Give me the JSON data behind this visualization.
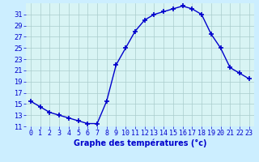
{
  "hours": [
    0,
    1,
    2,
    3,
    4,
    5,
    6,
    7,
    8,
    9,
    10,
    11,
    12,
    13,
    14,
    15,
    16,
    17,
    18,
    19,
    20,
    21,
    22,
    23
  ],
  "temps": [
    15.5,
    14.5,
    13.5,
    13.0,
    12.5,
    12.0,
    11.5,
    11.5,
    15.5,
    22.0,
    25.0,
    28.0,
    30.0,
    31.0,
    31.5,
    32.0,
    32.5,
    32.0,
    31.0,
    27.5,
    25.0,
    21.5,
    20.5,
    19.5
  ],
  "line_color": "#0000cc",
  "marker": "+",
  "marker_size": 4,
  "marker_lw": 1.2,
  "bg_color": "#cceeff",
  "plot_bg": "#d8f4f4",
  "grid_color": "#aacccc",
  "xlabel": "Graphe des températures (°c)",
  "xlabel_color": "#0000cc",
  "ylim": [
    11,
    33
  ],
  "xlim": [
    -0.5,
    23.5
  ],
  "yticks": [
    11,
    13,
    15,
    17,
    19,
    21,
    23,
    25,
    27,
    29,
    31
  ],
  "xtick_labels": [
    "0",
    "1",
    "2",
    "3",
    "4",
    "5",
    "6",
    "7",
    "8",
    "9",
    "10",
    "11",
    "12",
    "13",
    "14",
    "15",
    "16",
    "17",
    "18",
    "19",
    "20",
    "21",
    "22",
    "23"
  ],
  "tick_fontsize": 6,
  "label_fontsize": 7,
  "line_width": 1.0
}
